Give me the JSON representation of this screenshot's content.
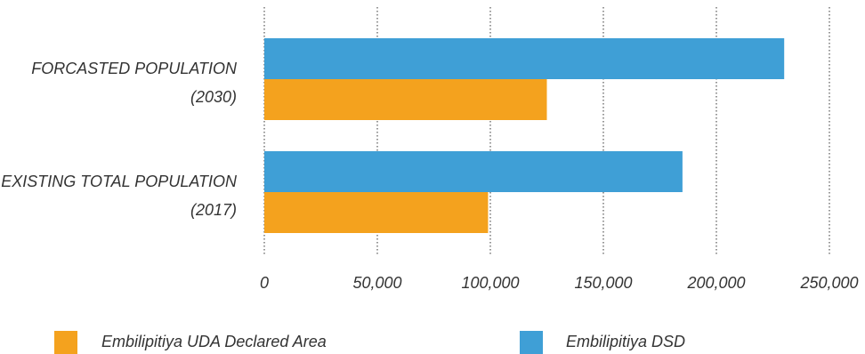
{
  "chart_data": {
    "type": "bar",
    "orientation": "horizontal",
    "categories": [
      [
        "FORCASTED POPULATION",
        "(2030)"
      ],
      [
        "EXISTING TOTAL POPULATION",
        "(2017)"
      ]
    ],
    "series": [
      {
        "name": "Embilipitiya DSD",
        "color": "#3f9fd6",
        "values": [
          230000,
          185000
        ]
      },
      {
        "name": "Embilipitiya UDA Declared Area",
        "color": "#f4a21e",
        "values": [
          125000,
          99000
        ]
      }
    ],
    "xlim": [
      0,
      250000
    ],
    "xticks": [
      "0",
      "50,000",
      "100,000",
      "150,000",
      "200,000",
      "250,000"
    ],
    "grid": true,
    "gridline_style": "dotted-vertical",
    "legend_placement": "bottom",
    "legend": [
      {
        "name": "Embilipitiya UDA Declared Area",
        "color": "#f4a21e"
      },
      {
        "name": "Embilipitiya DSD",
        "color": "#3f9fd6"
      }
    ]
  }
}
